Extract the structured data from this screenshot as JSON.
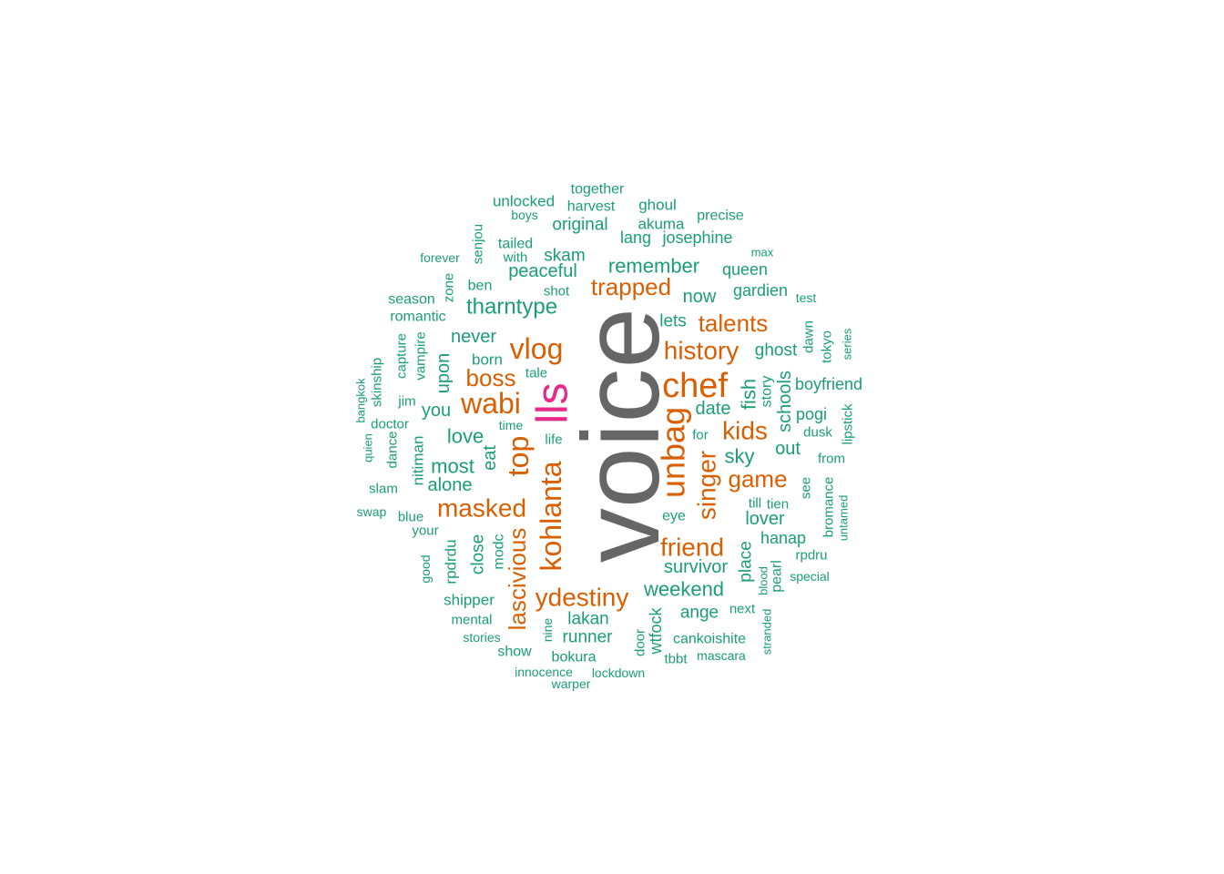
{
  "colors": {
    "gray": "#666666",
    "pink": "#e7298a",
    "orange": "#d95f02",
    "teal": "#1b9e77"
  },
  "words": [
    {
      "text": "voice",
      "color": "gray"
    },
    {
      "text": "lls",
      "color": "pink"
    },
    {
      "text": "chef",
      "color": "orange"
    },
    {
      "text": "unbag",
      "color": "orange"
    },
    {
      "text": "wabi",
      "color": "orange"
    },
    {
      "text": "kohlanta",
      "color": "orange"
    },
    {
      "text": "top",
      "color": "orange"
    },
    {
      "text": "vlog",
      "color": "orange"
    },
    {
      "text": "history",
      "color": "orange"
    },
    {
      "text": "masked",
      "color": "orange"
    },
    {
      "text": "ydestiny",
      "color": "orange"
    },
    {
      "text": "singer",
      "color": "orange"
    },
    {
      "text": "kids",
      "color": "orange"
    },
    {
      "text": "friend",
      "color": "orange"
    },
    {
      "text": "lascivious",
      "color": "orange"
    },
    {
      "text": "game",
      "color": "orange"
    },
    {
      "text": "trapped",
      "color": "orange"
    },
    {
      "text": "talents",
      "color": "orange"
    },
    {
      "text": "boss",
      "color": "orange"
    },
    {
      "text": "tharntype",
      "color": "teal"
    },
    {
      "text": "remember",
      "color": "teal"
    },
    {
      "text": "weekend",
      "color": "teal"
    },
    {
      "text": "peaceful",
      "color": "teal"
    },
    {
      "text": "survivor",
      "color": "teal"
    },
    {
      "text": "love",
      "color": "teal"
    },
    {
      "text": "never",
      "color": "teal"
    },
    {
      "text": "most",
      "color": "teal"
    },
    {
      "text": "alone",
      "color": "teal"
    },
    {
      "text": "upon",
      "color": "teal"
    },
    {
      "text": "you",
      "color": "teal"
    },
    {
      "text": "eat",
      "color": "teal"
    },
    {
      "text": "sky",
      "color": "teal"
    },
    {
      "text": "fish",
      "color": "teal"
    },
    {
      "text": "date",
      "color": "teal"
    },
    {
      "text": "out",
      "color": "teal"
    },
    {
      "text": "schools",
      "color": "teal"
    },
    {
      "text": "ghost",
      "color": "teal"
    },
    {
      "text": "lover",
      "color": "teal"
    },
    {
      "text": "now",
      "color": "teal"
    },
    {
      "text": "lets",
      "color": "teal"
    },
    {
      "text": "place",
      "color": "teal"
    },
    {
      "text": "skam",
      "color": "teal"
    },
    {
      "text": "original",
      "color": "teal"
    },
    {
      "text": "queen",
      "color": "teal"
    },
    {
      "text": "gardien",
      "color": "teal"
    },
    {
      "text": "josephine",
      "color": "teal"
    },
    {
      "text": "lang",
      "color": "teal"
    },
    {
      "text": "close",
      "color": "teal"
    },
    {
      "text": "lakan",
      "color": "teal"
    },
    {
      "text": "runner",
      "color": "teal"
    },
    {
      "text": "hanap",
      "color": "teal"
    },
    {
      "text": "ange",
      "color": "teal"
    },
    {
      "text": "wtfock",
      "color": "teal"
    },
    {
      "text": "boyfriend",
      "color": "teal"
    },
    {
      "text": "pogi",
      "color": "teal"
    },
    {
      "text": "born",
      "color": "teal"
    },
    {
      "text": "shipper",
      "color": "teal"
    },
    {
      "text": "nitiman",
      "color": "teal"
    },
    {
      "text": "story",
      "color": "teal"
    },
    {
      "text": "eye",
      "color": "teal"
    },
    {
      "text": "pearl",
      "color": "teal"
    },
    {
      "text": "rpdrdu",
      "color": "teal"
    },
    {
      "text": "modc",
      "color": "teal"
    },
    {
      "text": "together",
      "color": "teal"
    },
    {
      "text": "unlocked",
      "color": "teal"
    },
    {
      "text": "harvest",
      "color": "teal"
    },
    {
      "text": "ghoul",
      "color": "teal"
    },
    {
      "text": "akuma",
      "color": "teal"
    },
    {
      "text": "precise",
      "color": "teal"
    },
    {
      "text": "tailed",
      "color": "teal"
    },
    {
      "text": "with",
      "color": "teal"
    },
    {
      "text": "ben",
      "color": "teal"
    },
    {
      "text": "shot",
      "color": "teal"
    },
    {
      "text": "season",
      "color": "teal"
    },
    {
      "text": "romantic",
      "color": "teal"
    },
    {
      "text": "tale",
      "color": "teal"
    },
    {
      "text": "life",
      "color": "teal"
    },
    {
      "text": "for",
      "color": "teal"
    },
    {
      "text": "till",
      "color": "teal"
    },
    {
      "text": "tien",
      "color": "teal"
    },
    {
      "text": "see",
      "color": "teal"
    },
    {
      "text": "next",
      "color": "teal"
    },
    {
      "text": "cankoishite",
      "color": "teal"
    },
    {
      "text": "bokura",
      "color": "teal"
    },
    {
      "text": "mental",
      "color": "teal"
    },
    {
      "text": "show",
      "color": "teal"
    },
    {
      "text": "door",
      "color": "teal"
    },
    {
      "text": "jim",
      "color": "teal"
    },
    {
      "text": "doctor",
      "color": "teal"
    },
    {
      "text": "slam",
      "color": "teal"
    },
    {
      "text": "blue",
      "color": "teal"
    },
    {
      "text": "your",
      "color": "teal"
    },
    {
      "text": "dance",
      "color": "teal"
    },
    {
      "text": "capture",
      "color": "teal"
    },
    {
      "text": "vampire",
      "color": "teal"
    },
    {
      "text": "zone",
      "color": "teal"
    },
    {
      "text": "senjou",
      "color": "teal"
    },
    {
      "text": "skinship",
      "color": "teal"
    },
    {
      "text": "dawn",
      "color": "teal"
    },
    {
      "text": "tokyo",
      "color": "teal"
    },
    {
      "text": "dusk",
      "color": "teal"
    },
    {
      "text": "from",
      "color": "teal"
    },
    {
      "text": "lipstick",
      "color": "teal"
    },
    {
      "text": "bromance",
      "color": "teal"
    },
    {
      "text": "rpdru",
      "color": "teal"
    },
    {
      "text": "blood",
      "color": "teal"
    },
    {
      "text": "stranded",
      "color": "teal"
    },
    {
      "text": "tbbt",
      "color": "teal"
    },
    {
      "text": "mascara",
      "color": "teal"
    },
    {
      "text": "special",
      "color": "teal"
    },
    {
      "text": "untamed",
      "color": "teal"
    },
    {
      "text": "good",
      "color": "teal"
    },
    {
      "text": "stories",
      "color": "teal"
    },
    {
      "text": "innocence",
      "color": "teal"
    },
    {
      "text": "lockdown",
      "color": "teal"
    },
    {
      "text": "warper",
      "color": "teal"
    },
    {
      "text": "nine",
      "color": "teal"
    },
    {
      "text": "boys",
      "color": "teal"
    },
    {
      "text": "forever",
      "color": "teal"
    },
    {
      "text": "max",
      "color": "teal"
    },
    {
      "text": "test",
      "color": "teal"
    },
    {
      "text": "series",
      "color": "teal"
    },
    {
      "text": "time",
      "color": "teal"
    },
    {
      "text": "quien",
      "color": "teal"
    },
    {
      "text": "bangkok",
      "color": "teal"
    },
    {
      "text": "swap",
      "color": "teal"
    }
  ]
}
